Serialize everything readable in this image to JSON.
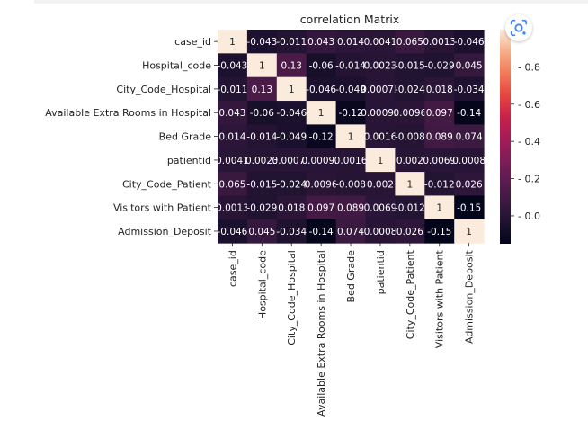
{
  "chart_data": {
    "type": "heatmap",
    "title": "correlation Matrix",
    "row_labels": [
      "case_id",
      "Hospital_code",
      "City_Code_Hospital",
      "Available Extra Rooms in Hospital",
      "Bed Grade",
      "patientid",
      "City_Code_Patient",
      "Visitors with Patient",
      "Admission_Deposit"
    ],
    "col_labels": [
      "case_id",
      "Hospital_code",
      "City_Code_Hospital",
      "Available Extra Rooms in Hospital",
      "Bed Grade",
      "patientid",
      "City_Code_Patient",
      "Visitors with Patient",
      "Admission_Deposit"
    ],
    "values": [
      [
        1,
        -0.043,
        -0.011,
        0.043,
        0.014,
        0.0041,
        0.065,
        0.0013,
        -0.046
      ],
      [
        -0.043,
        1,
        0.13,
        -0.06,
        -0.014,
        0.0023,
        -0.015,
        -0.029,
        0.045
      ],
      [
        -0.011,
        0.13,
        1,
        -0.046,
        -0.049,
        0.00075,
        -0.024,
        0.018,
        -0.034
      ],
      [
        0.043,
        -0.06,
        -0.046,
        1,
        -0.12,
        0.00092,
        0.0096,
        0.097,
        -0.14
      ],
      [
        0.014,
        -0.014,
        -0.049,
        -0.12,
        1,
        0.0016,
        -0.008,
        0.089,
        0.074
      ],
      [
        0.0041,
        0.0023,
        0.00075,
        0.00092,
        0.0016,
        1,
        0.002,
        0.0069,
        0.0008
      ],
      [
        0.065,
        -0.015,
        -0.024,
        0.0096,
        -0.008,
        0.002,
        1,
        -0.012,
        0.026
      ],
      [
        0.0013,
        -0.029,
        0.018,
        0.097,
        0.089,
        0.0069,
        -0.012,
        1,
        -0.15
      ],
      [
        -0.046,
        0.045,
        -0.034,
        -0.14,
        0.074,
        0.0008,
        0.026,
        -0.15,
        1
      ]
    ],
    "cell_labels": [
      [
        "1",
        "-0.043",
        "-0.011",
        "0.043",
        "0.014",
        "0.0041",
        "0.065",
        "0.0013",
        "-0.046"
      ],
      [
        "-0.043",
        "1",
        "0.13",
        "-0.06",
        "-0.014",
        "0.0023",
        "-0.015",
        "-0.029",
        "0.045"
      ],
      [
        "-0.011",
        "0.13",
        "1",
        "-0.046",
        "-0.049",
        "0.00075",
        "-0.024",
        "0.018",
        "-0.034"
      ],
      [
        "0.043",
        "-0.06",
        "-0.046",
        "1",
        "-0.12",
        "0.00092",
        "0.0096",
        "0.097",
        "-0.14"
      ],
      [
        "0.014",
        "-0.014",
        "-0.049",
        "-0.12",
        "1",
        "0.0016",
        "-0.008",
        "0.089",
        "0.074"
      ],
      [
        "0.0041",
        "0.0023",
        "0.00075",
        "0.00092",
        "0.0016",
        "1",
        "0.002",
        "0.0069",
        "0.0008"
      ],
      [
        "0.065",
        "-0.015",
        "-0.024",
        "0.0096",
        "-0.008",
        "0.002",
        "1",
        "-0.012",
        "0.026"
      ],
      [
        "0.0013",
        "-0.029",
        "0.018",
        "0.097",
        "0.089",
        "0.0069",
        "-0.012",
        "1",
        "-0.15"
      ],
      [
        "-0.046",
        "0.045",
        "-0.034",
        "-0.14",
        "0.074",
        "0.0008",
        "0.026",
        "-0.15",
        "1"
      ]
    ],
    "colorbar": {
      "colormap": "rocket",
      "vmin": -0.15,
      "vmax": 1,
      "ticks": [
        0.0,
        0.2,
        0.4,
        0.6,
        0.8
      ],
      "tick_labels": [
        "0.0",
        "0.2",
        "0.4",
        "0.6",
        "0.8"
      ]
    },
    "grid": false
  },
  "ui": {
    "lens_button_icon": "google-lens-icon",
    "accent_color": "#4285f4"
  }
}
